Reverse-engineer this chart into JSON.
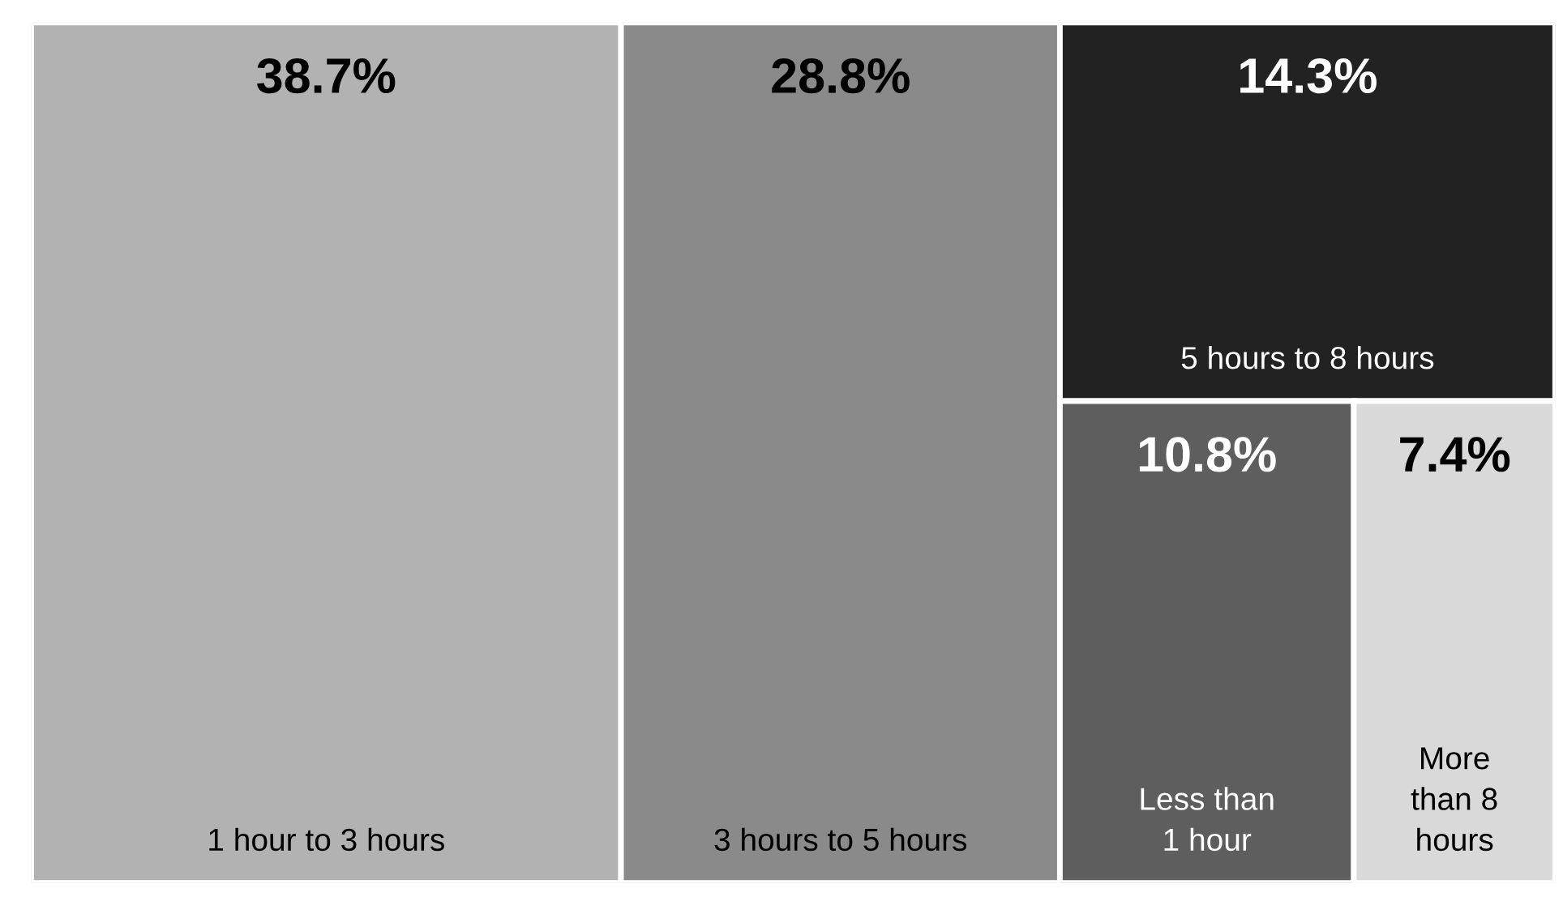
{
  "chart_data": {
    "type": "other",
    "categories": [
      "1 hour to 3 hours",
      "3 hours to 5 hours",
      "5 hours to 8 hours",
      "Less than\n1 hour",
      "More\nthan 8\nhours"
    ],
    "values": [
      38.7,
      28.8,
      14.3,
      10.8,
      7.4
    ],
    "value_labels": [
      "38.7%",
      "28.8%",
      "14.3%",
      "10.8%",
      "7.4%"
    ],
    "colors": [
      "#b2b2b2",
      "#8a8a8a",
      "#222222",
      "#5e5e5e",
      "#d9d9d9"
    ]
  }
}
